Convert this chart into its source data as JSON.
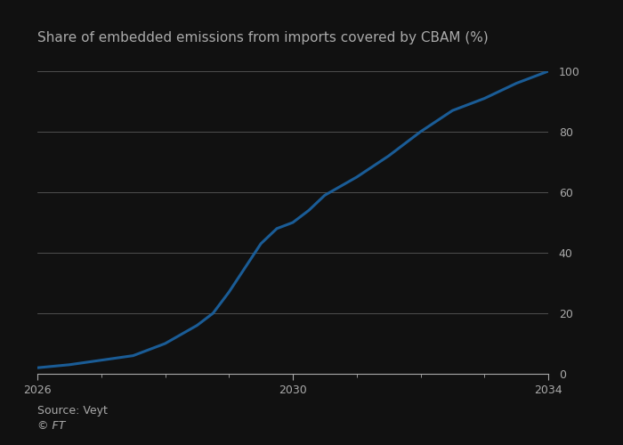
{
  "title": "Share of embedded emissions from imports covered by CBAM (%)",
  "source": "Source: Veyt",
  "ft_credit": "© FT",
  "x_values": [
    2026,
    2026.5,
    2027,
    2027.5,
    2028,
    2028.25,
    2028.5,
    2028.75,
    2029,
    2029.25,
    2029.5,
    2029.75,
    2030,
    2030.25,
    2030.5,
    2031,
    2031.5,
    2032,
    2032.5,
    2033,
    2033.5,
    2034
  ],
  "y_values": [
    2,
    3,
    4.5,
    6,
    10,
    13,
    16,
    20,
    27,
    35,
    43,
    48,
    50,
    54,
    59,
    65,
    72,
    80,
    87,
    91,
    96,
    100
  ],
  "line_color": "#1a5c96",
  "line_width": 2.2,
  "background_color": "#111111",
  "plot_bg_color": "#111111",
  "grid_color": "#444444",
  "text_color": "#aaaaaa",
  "title_fontsize": 11,
  "tick_fontsize": 9,
  "source_fontsize": 9,
  "xlim": [
    2026,
    2034
  ],
  "ylim": [
    0,
    100
  ],
  "yticks": [
    0,
    20,
    40,
    60,
    80,
    100
  ],
  "xticks": [
    2026,
    2030,
    2034
  ],
  "xtick_labels": [
    "2026",
    "2030",
    "2034"
  ],
  "minor_xticks": [
    2027,
    2028,
    2029,
    2031,
    2032,
    2033
  ]
}
